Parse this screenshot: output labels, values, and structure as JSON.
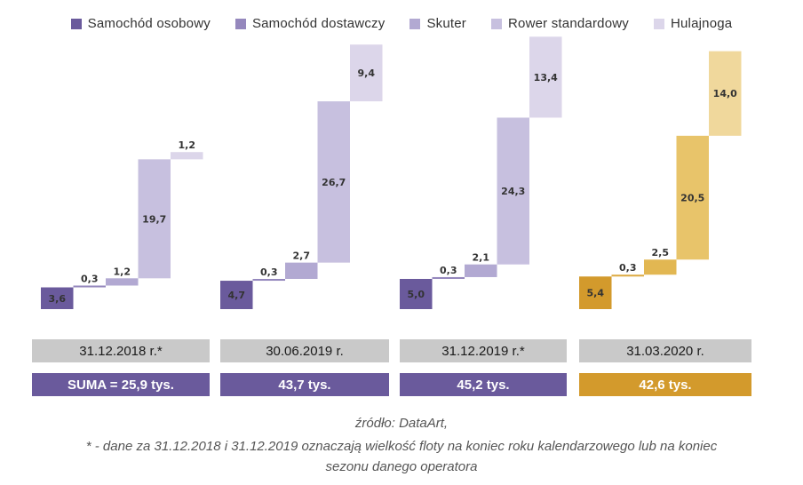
{
  "legend": [
    {
      "label": "Samochód osobowy",
      "color": "#6a5a9c"
    },
    {
      "label": "Samochód dostawczy",
      "color": "#9588bd"
    },
    {
      "label": "Skuter",
      "color": "#b2a9d2"
    },
    {
      "label": "Rower standardowy",
      "color": "#c7c0df"
    },
    {
      "label": "Hulajnoga",
      "color": "#dcd6ea"
    }
  ],
  "chart_data": {
    "type": "waterfall",
    "categories": [
      "Samochód osobowy",
      "Samochód dostawczy",
      "Skuter",
      "Rower standardowy",
      "Hulajnoga"
    ],
    "unit": "tys.",
    "groups": [
      {
        "date": "31.12.2018 r.*",
        "total_label": "SUMA = 25,9 tys.",
        "values": [
          3.6,
          0.3,
          1.2,
          19.7,
          1.2
        ],
        "labels": [
          "3,6",
          "0,3",
          "1,2",
          "19,7",
          "1,2"
        ],
        "highlight": false
      },
      {
        "date": "30.06.2019 r.",
        "total_label": "43,7 tys.",
        "values": [
          4.7,
          0.3,
          2.7,
          26.7,
          9.4
        ],
        "labels": [
          "4,7",
          "0,3",
          "2,7",
          "26,7",
          "9,4"
        ],
        "highlight": false
      },
      {
        "date": "31.12.2019 r.*",
        "total_label": "45,2 tys.",
        "values": [
          5.0,
          0.3,
          2.1,
          24.3,
          13.4
        ],
        "labels": [
          "5,0",
          "0,3",
          "2,1",
          "24,3",
          "13,4"
        ],
        "highlight": false
      },
      {
        "date": "31.03.2020 r.",
        "total_label": "42,6 tys.",
        "values": [
          5.4,
          0.3,
          2.5,
          20.5,
          14.0
        ],
        "labels": [
          "5,4",
          "0,3",
          "2,5",
          "20,5",
          "14,0"
        ],
        "highlight": true
      }
    ],
    "highlight_colors": [
      "#d39a2c",
      "#ddab43",
      "#e2b752",
      "#e8c46a",
      "#f0d89c"
    ],
    "highlight_total_color": "#d39a2c",
    "total_color": "#6a5a9c",
    "date_box_color": "#c9c9c9"
  },
  "footer": {
    "line1": "źródło: DataArt,",
    "line2": "* - dane za 31.12.2018 i 31.12.2019 oznaczają wielkość floty na koniec roku kalendarzowego lub na koniec",
    "line3": "sezonu danego operatora"
  }
}
